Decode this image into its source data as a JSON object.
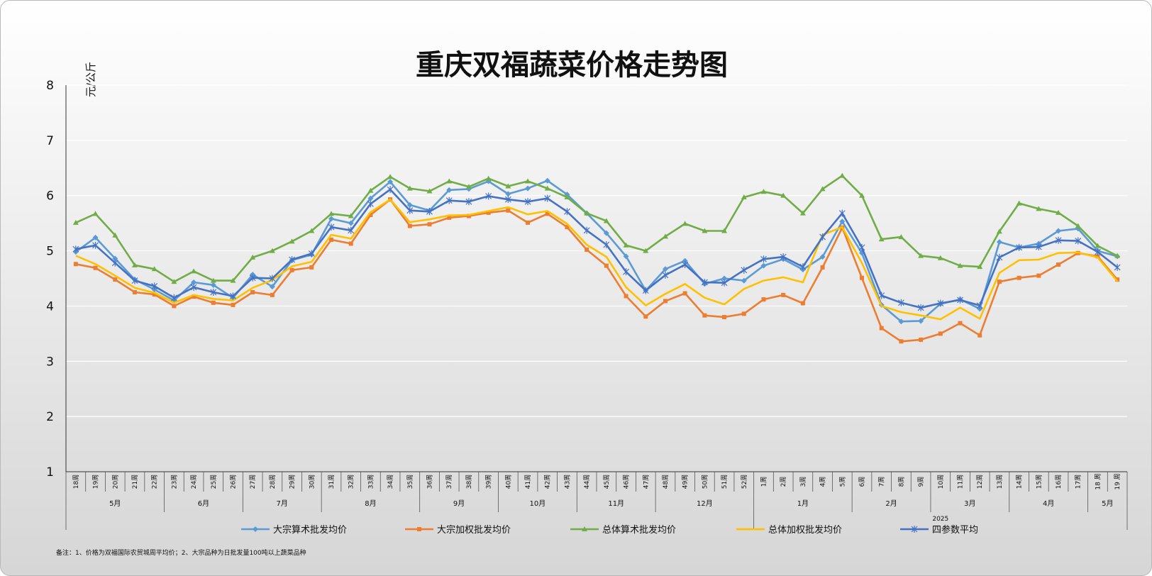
{
  "chart_data": {
    "type": "line",
    "title": "重庆双福蔬菜价格走势图",
    "ylabel": "元/公斤",
    "ylim": [
      1,
      8
    ],
    "yticks": [
      1,
      2,
      3,
      4,
      5,
      6,
      7,
      8
    ],
    "grid": true,
    "legend_position": "bottom",
    "x": [
      "18周",
      "19周",
      "20周",
      "21周",
      "22周",
      "23周",
      "24周",
      "25周",
      "26周",
      "27周",
      "28周",
      "29周",
      "30周",
      "31周",
      "32周",
      "33周",
      "34周",
      "35周",
      "36周",
      "37周",
      "38周",
      "39周",
      "40周",
      "41周",
      "42周",
      "43周",
      "44周",
      "45周",
      "46周",
      "47周",
      "48周",
      "49周",
      "50周",
      "51周",
      "52周",
      "1周",
      "2周",
      "3周",
      "4周",
      "5周",
      "6周",
      "7周",
      "8周",
      "9周",
      "10周",
      "11周",
      "12周",
      "13周",
      "14周",
      "15周",
      "16周",
      "17周",
      "18 周",
      "19 周"
    ],
    "month_groups": [
      {
        "label": "5月",
        "start": 0,
        "end": 4
      },
      {
        "label": "6月",
        "start": 5,
        "end": 8
      },
      {
        "label": "7月",
        "start": 9,
        "end": 12
      },
      {
        "label": "8月",
        "start": 13,
        "end": 17
      },
      {
        "label": "9月",
        "start": 18,
        "end": 21
      },
      {
        "label": "10月",
        "start": 22,
        "end": 25
      },
      {
        "label": "11月",
        "start": 26,
        "end": 29
      },
      {
        "label": "12月",
        "start": 30,
        "end": 34
      },
      {
        "label": "1月",
        "start": 35,
        "end": 39
      },
      {
        "label": "2月",
        "start": 40,
        "end": 43
      },
      {
        "label": "3月",
        "start": 44,
        "end": 47
      },
      {
        "label": "4月",
        "start": 48,
        "end": 51
      },
      {
        "label": "5月",
        "start": 52,
        "end": 53
      }
    ],
    "year_groups": [
      {
        "label": "2025",
        "start": 35,
        "end": 53
      }
    ],
    "series": [
      {
        "name": "大宗算术批发均价",
        "color": "#5b9bd5",
        "marker": "diamond",
        "values": [
          4.98,
          5.24,
          4.86,
          4.48,
          4.3,
          4.1,
          4.43,
          4.38,
          4.15,
          4.57,
          4.35,
          4.83,
          4.93,
          5.58,
          5.5,
          5.95,
          6.25,
          5.83,
          5.73,
          6.1,
          6.12,
          6.26,
          6.03,
          6.13,
          6.27,
          6.02,
          5.68,
          5.32,
          4.9,
          4.28,
          4.67,
          4.82,
          4.4,
          4.5,
          4.46,
          4.73,
          4.85,
          4.66,
          4.89,
          5.53,
          4.96,
          4.02,
          3.72,
          3.73,
          4.04,
          4.12,
          3.95,
          5.16,
          5.06,
          5.13,
          5.36,
          5.4,
          5.0,
          4.9
        ]
      },
      {
        "name": "大宗加权批发均价",
        "color": "#ed7d31",
        "marker": "square",
        "values": [
          4.76,
          4.69,
          4.48,
          4.25,
          4.21,
          4.0,
          4.17,
          4.06,
          4.02,
          4.25,
          4.2,
          4.65,
          4.7,
          5.2,
          5.13,
          5.65,
          5.93,
          5.45,
          5.48,
          5.6,
          5.63,
          5.69,
          5.73,
          5.51,
          5.67,
          5.43,
          5.02,
          4.73,
          4.18,
          3.81,
          4.09,
          4.23,
          3.83,
          3.8,
          3.86,
          4.12,
          4.2,
          4.05,
          4.7,
          5.42,
          4.51,
          3.6,
          3.36,
          3.39,
          3.5,
          3.69,
          3.47,
          4.44,
          4.51,
          4.55,
          4.75,
          4.96,
          4.9,
          4.48
        ]
      },
      {
        "name": "总体算术批发均价",
        "color": "#70ad47",
        "marker": "triangle",
        "values": [
          5.51,
          5.67,
          5.28,
          4.74,
          4.67,
          4.44,
          4.63,
          4.46,
          4.46,
          4.88,
          5.0,
          5.17,
          5.36,
          5.67,
          5.63,
          6.09,
          6.34,
          6.13,
          6.08,
          6.26,
          6.16,
          6.31,
          6.17,
          6.26,
          6.13,
          5.97,
          5.68,
          5.54,
          5.1,
          5.0,
          5.26,
          5.49,
          5.36,
          5.36,
          5.97,
          6.07,
          6.0,
          5.68,
          6.12,
          6.36,
          6.0,
          5.21,
          5.25,
          4.91,
          4.87,
          4.73,
          4.71,
          5.35,
          5.86,
          5.76,
          5.69,
          5.45,
          5.09,
          4.91
        ]
      },
      {
        "name": "总体加权批发均价",
        "color": "#ffc000",
        "marker": "none",
        "values": [
          4.91,
          4.76,
          4.55,
          4.33,
          4.24,
          4.06,
          4.2,
          4.13,
          4.1,
          4.33,
          4.47,
          4.72,
          4.8,
          5.29,
          5.22,
          5.7,
          5.93,
          5.52,
          5.57,
          5.64,
          5.65,
          5.72,
          5.79,
          5.66,
          5.72,
          5.49,
          5.11,
          4.89,
          4.34,
          4.01,
          4.22,
          4.4,
          4.15,
          4.03,
          4.31,
          4.46,
          4.52,
          4.43,
          5.29,
          5.43,
          4.78,
          4.0,
          3.89,
          3.83,
          3.76,
          3.97,
          3.77,
          4.6,
          4.83,
          4.84,
          4.96,
          4.97,
          4.88,
          4.45
        ]
      },
      {
        "name": "四参数平均",
        "color": "#4472c4",
        "marker": "star",
        "values": [
          5.03,
          5.1,
          4.78,
          4.46,
          4.36,
          4.15,
          4.34,
          4.25,
          4.18,
          4.51,
          4.5,
          4.84,
          4.95,
          5.43,
          5.37,
          5.85,
          6.11,
          5.73,
          5.71,
          5.91,
          5.89,
          5.99,
          5.93,
          5.89,
          5.95,
          5.71,
          5.37,
          5.11,
          4.62,
          4.28,
          4.56,
          4.75,
          4.43,
          4.42,
          4.65,
          4.85,
          4.89,
          4.71,
          5.25,
          5.68,
          5.06,
          4.19,
          4.06,
          3.97,
          4.05,
          4.11,
          4.01,
          4.88,
          5.06,
          5.07,
          5.19,
          5.18,
          4.98,
          4.7
        ]
      }
    ],
    "note": "备注：1、价格为双福国际农贸城周平均价；2、大宗品种为日批发量100吨以上蔬菜品种"
  }
}
